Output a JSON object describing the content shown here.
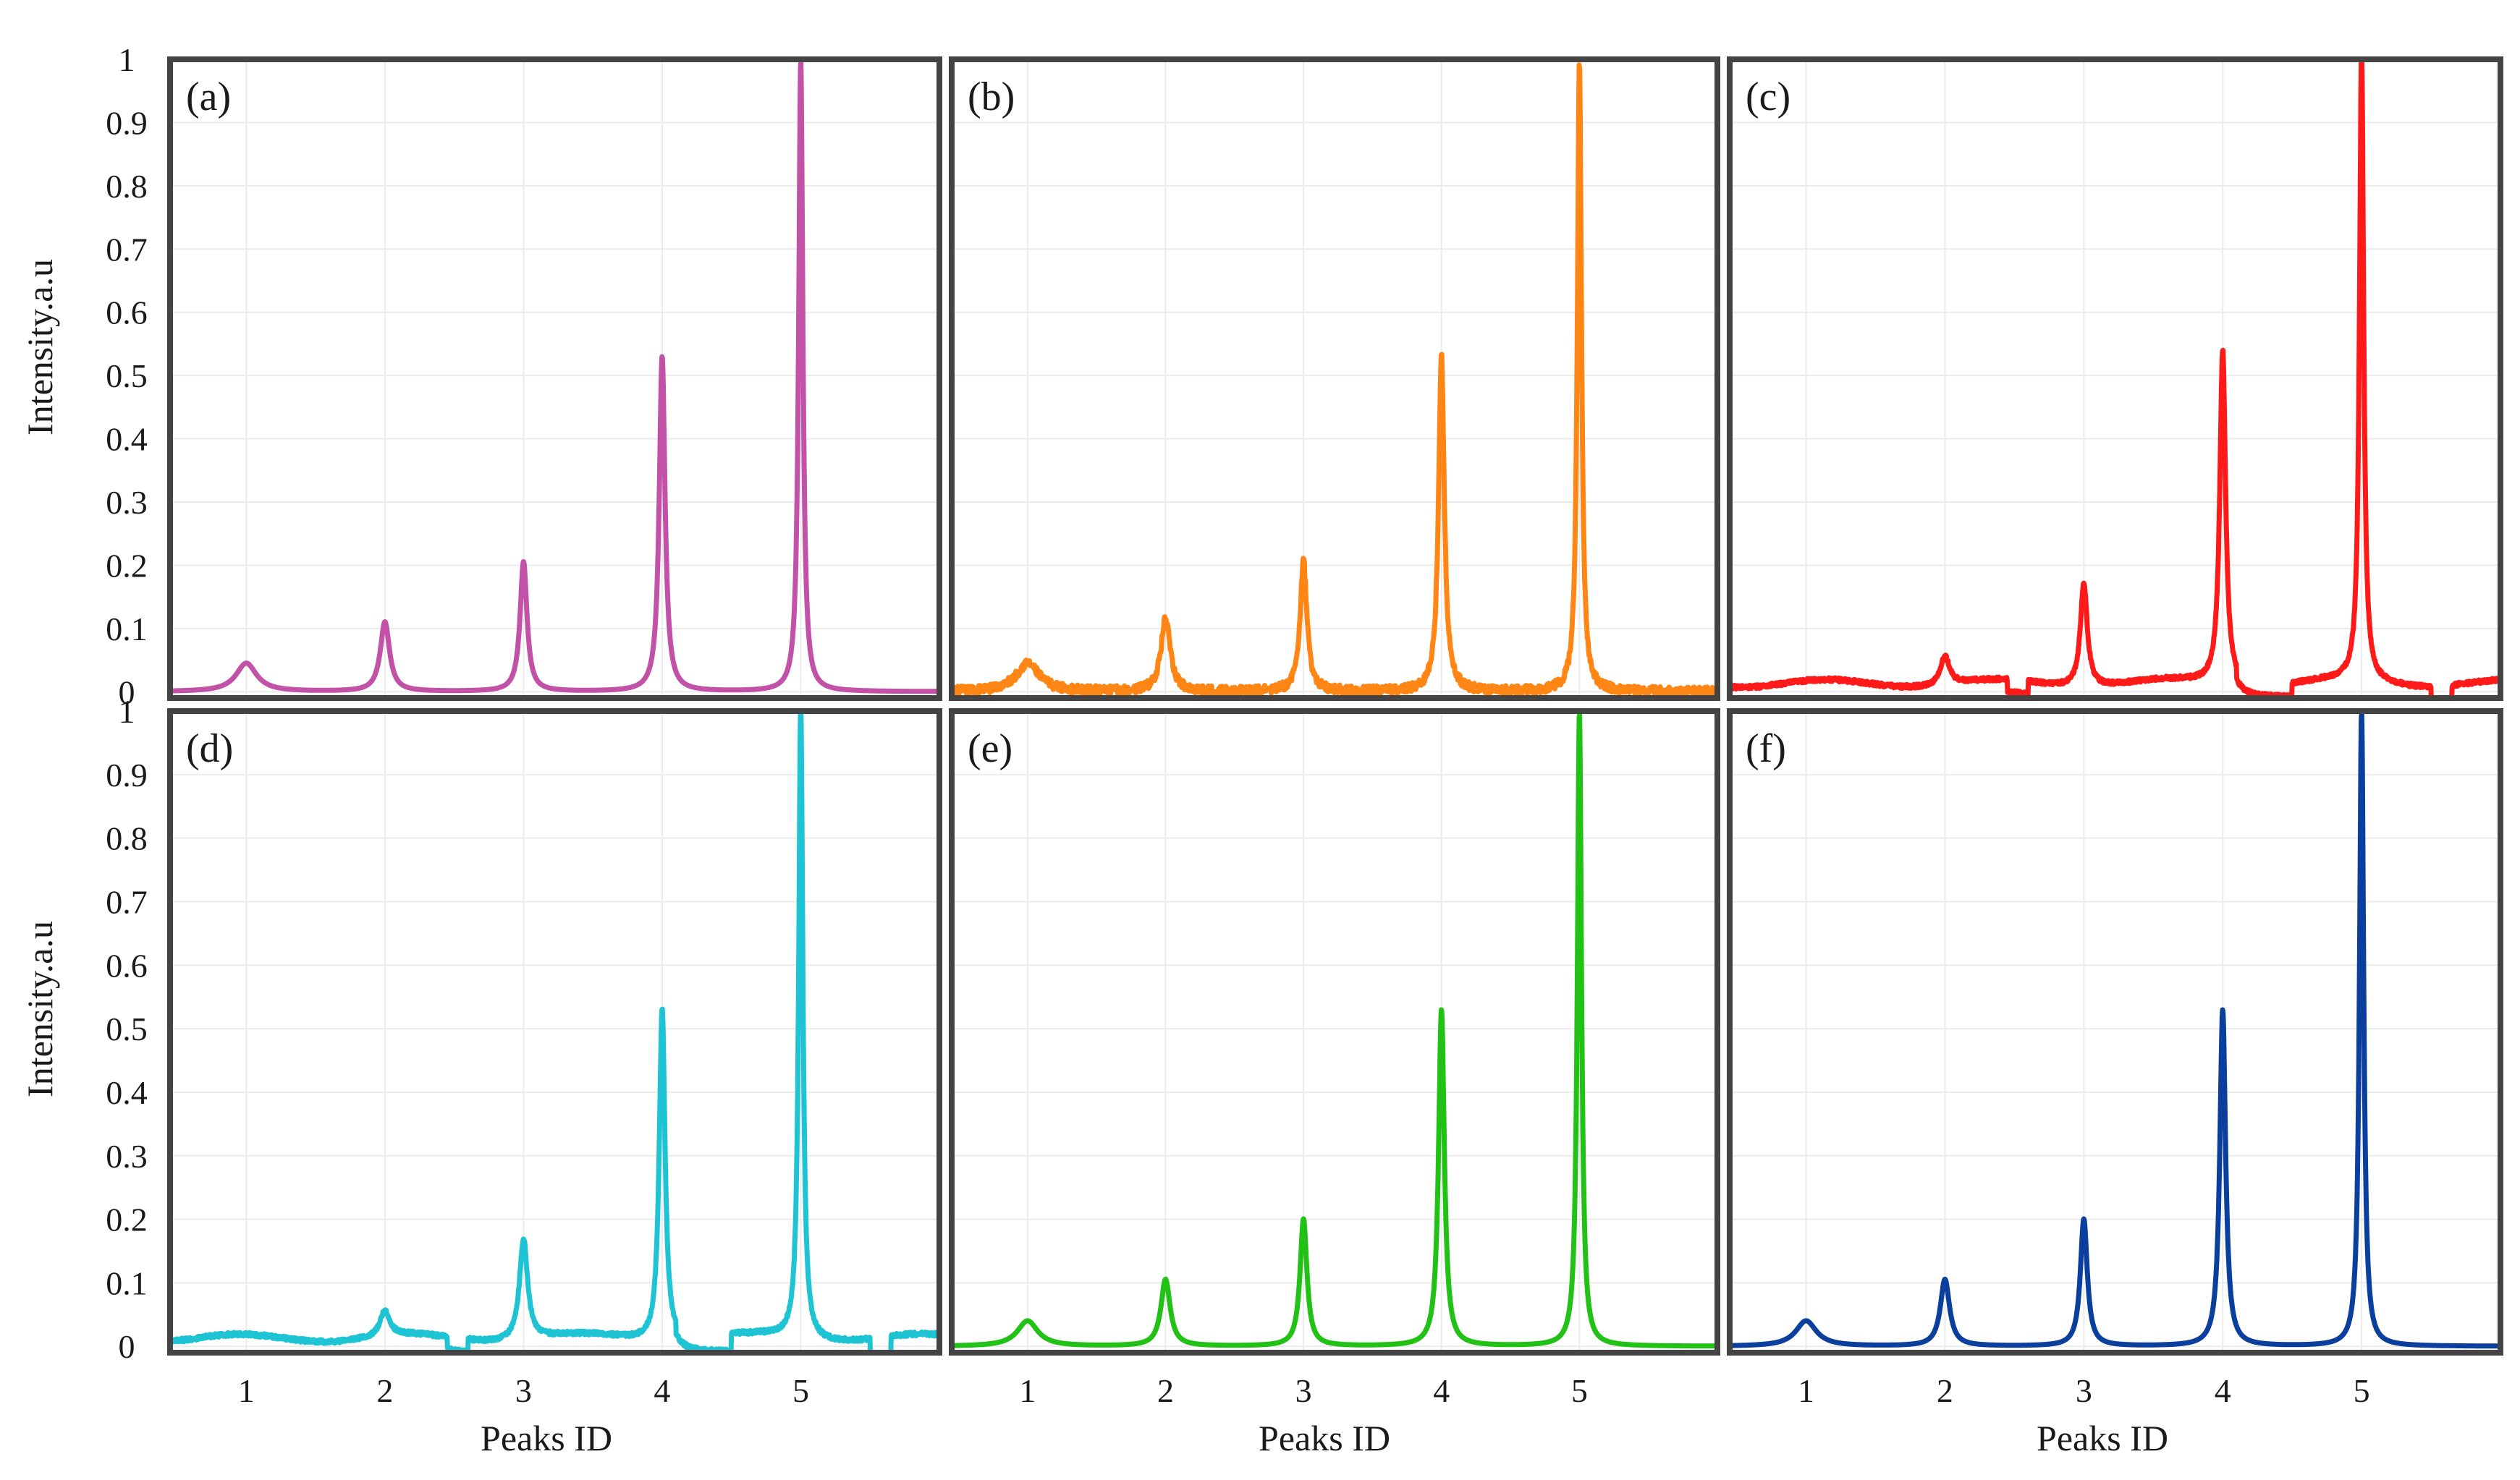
{
  "figure": {
    "ylabel": "Intensity.a.u",
    "xlabel": "Peaks ID"
  },
  "colors": {
    "frame": "#444444",
    "grid": "#ebebeb"
  },
  "chart_data": [
    {
      "type": "line",
      "label": "(a)",
      "color": "#c152a8",
      "profile": "smooth",
      "x_ticks": [
        1,
        2,
        3,
        4,
        5
      ],
      "xlim": [
        0.45,
        6.0
      ],
      "y_ticks": [
        0,
        0.1,
        0.2,
        0.3,
        0.4,
        0.5,
        0.6,
        0.7,
        0.8,
        0.9,
        1
      ],
      "ylim": [
        -0.01,
        1.0
      ],
      "peaks": [
        {
          "x": 1.0,
          "y": 0.045,
          "width": 0.09
        },
        {
          "x": 2.0,
          "y": 0.11,
          "width": 0.04
        },
        {
          "x": 3.0,
          "y": 0.205,
          "width": 0.03
        },
        {
          "x": 4.0,
          "y": 0.53,
          "width": 0.025
        },
        {
          "x": 5.0,
          "y": 1.0,
          "width": 0.018
        }
      ]
    },
    {
      "type": "line",
      "label": "(b)",
      "color": "#ff8514",
      "profile": "noisy",
      "x_ticks": [
        1,
        2,
        3,
        4,
        5
      ],
      "xlim": [
        0.45,
        6.0
      ],
      "y_ticks": [
        0,
        0.1,
        0.2,
        0.3,
        0.4,
        0.5,
        0.6,
        0.7,
        0.8,
        0.9,
        1
      ],
      "ylim": [
        -0.01,
        1.0
      ],
      "peaks": [
        {
          "x": 1.0,
          "y": 0.045,
          "width": 0.1
        },
        {
          "x": 2.0,
          "y": 0.115,
          "width": 0.04
        },
        {
          "x": 3.0,
          "y": 0.205,
          "width": 0.03
        },
        {
          "x": 4.0,
          "y": 0.53,
          "width": 0.025
        },
        {
          "x": 5.0,
          "y": 1.0,
          "width": 0.018
        }
      ]
    },
    {
      "type": "line",
      "label": "(c)",
      "color": "#ff1a1a",
      "profile": "artifacts",
      "x_ticks": [
        1,
        2,
        3,
        4,
        5
      ],
      "xlim": [
        0.45,
        6.0
      ],
      "y_ticks": [
        0,
        0.1,
        0.2,
        0.3,
        0.4,
        0.5,
        0.6,
        0.7,
        0.8,
        0.9,
        1
      ],
      "ylim": [
        -0.01,
        1.0
      ],
      "peaks": [
        {
          "x": 1.0,
          "y": 0.0,
          "width": 0.1
        },
        {
          "x": 2.0,
          "y": 0.045,
          "width": 0.04
        },
        {
          "x": 3.0,
          "y": 0.165,
          "width": 0.03
        },
        {
          "x": 4.0,
          "y": 0.53,
          "width": 0.025
        },
        {
          "x": 5.0,
          "y": 1.0,
          "width": 0.018
        }
      ]
    },
    {
      "type": "line",
      "label": "(d)",
      "color": "#1ec3d4",
      "profile": "artifacts",
      "x_ticks": [
        1,
        2,
        3,
        4,
        5
      ],
      "xlim": [
        0.45,
        6.0
      ],
      "y_ticks": [
        0,
        0.1,
        0.2,
        0.3,
        0.4,
        0.5,
        0.6,
        0.7,
        0.8,
        0.9,
        1
      ],
      "ylim": [
        -0.01,
        1.0
      ],
      "peaks": [
        {
          "x": 1.0,
          "y": 0.0,
          "width": 0.1
        },
        {
          "x": 2.0,
          "y": 0.04,
          "width": 0.04
        },
        {
          "x": 3.0,
          "y": 0.16,
          "width": 0.035
        },
        {
          "x": 4.0,
          "y": 0.525,
          "width": 0.025
        },
        {
          "x": 5.0,
          "y": 1.0,
          "width": 0.018
        }
      ]
    },
    {
      "type": "line",
      "label": "(e)",
      "color": "#21c116",
      "profile": "smooth",
      "x_ticks": [
        1,
        2,
        3,
        4,
        5
      ],
      "xlim": [
        0.45,
        6.0
      ],
      "y_ticks": [
        0,
        0.1,
        0.2,
        0.3,
        0.4,
        0.5,
        0.6,
        0.7,
        0.8,
        0.9,
        1
      ],
      "ylim": [
        -0.01,
        1.0
      ],
      "peaks": [
        {
          "x": 1.0,
          "y": 0.04,
          "width": 0.09
        },
        {
          "x": 2.0,
          "y": 0.105,
          "width": 0.04
        },
        {
          "x": 3.0,
          "y": 0.2,
          "width": 0.03
        },
        {
          "x": 4.0,
          "y": 0.53,
          "width": 0.025
        },
        {
          "x": 5.0,
          "y": 1.0,
          "width": 0.018
        }
      ]
    },
    {
      "type": "line",
      "label": "(f)",
      "color": "#0b3f9e",
      "profile": "smooth",
      "x_ticks": [
        1,
        2,
        3,
        4,
        5
      ],
      "xlim": [
        0.45,
        6.0
      ],
      "y_ticks": [
        0,
        0.1,
        0.2,
        0.3,
        0.4,
        0.5,
        0.6,
        0.7,
        0.8,
        0.9,
        1
      ],
      "ylim": [
        -0.01,
        1.0
      ],
      "peaks": [
        {
          "x": 1.0,
          "y": 0.04,
          "width": 0.09
        },
        {
          "x": 2.0,
          "y": 0.105,
          "width": 0.04
        },
        {
          "x": 3.0,
          "y": 0.2,
          "width": 0.03
        },
        {
          "x": 4.0,
          "y": 0.53,
          "width": 0.025
        },
        {
          "x": 5.0,
          "y": 1.0,
          "width": 0.018
        }
      ]
    }
  ]
}
